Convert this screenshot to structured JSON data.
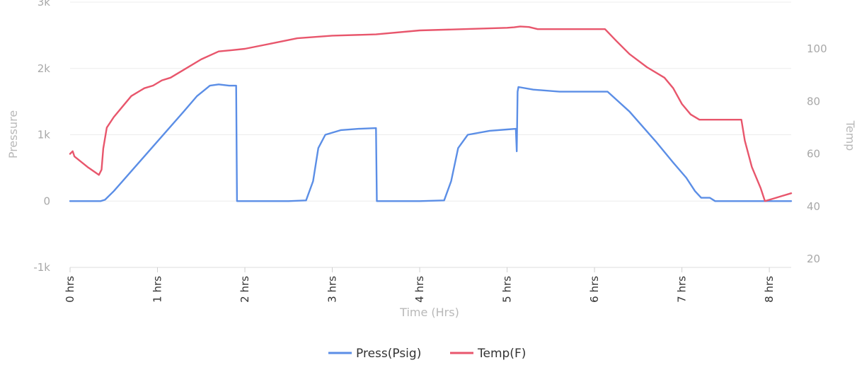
{
  "chart_data": {
    "type": "line",
    "title": "",
    "xlabel": "Time (Hrs)",
    "ylabel_left": "Pressure",
    "ylabel_right": "Temp",
    "xlim": [
      0,
      8.25
    ],
    "ylim_left": [
      -1000,
      3000
    ],
    "ylim_right": [
      20,
      100
    ],
    "x_ticks": [
      {
        "value": 0,
        "label": "0 hrs"
      },
      {
        "value": 1,
        "label": "1 hrs"
      },
      {
        "value": 2,
        "label": "2 hrs"
      },
      {
        "value": 3,
        "label": "3 hrs"
      },
      {
        "value": 4,
        "label": "4 hrs"
      },
      {
        "value": 5,
        "label": "5 hrs"
      },
      {
        "value": 6,
        "label": "6 hrs"
      },
      {
        "value": 7,
        "label": "7 hrs"
      },
      {
        "value": 8,
        "label": "8 hrs"
      }
    ],
    "y_left_ticks": [
      {
        "value": -1000,
        "label": "-1k"
      },
      {
        "value": 0,
        "label": "0"
      },
      {
        "value": 1000,
        "label": "1k"
      },
      {
        "value": 2000,
        "label": "2k"
      },
      {
        "value": 3000,
        "label": "3k"
      }
    ],
    "y_right_ticks": [
      {
        "value": 20,
        "label": "20"
      },
      {
        "value": 40,
        "label": "40"
      },
      {
        "value": 60,
        "label": "60"
      },
      {
        "value": 80,
        "label": "80"
      },
      {
        "value": 100,
        "label": "100"
      }
    ],
    "grid": true,
    "legend_position": "bottom-center",
    "series": [
      {
        "name": "Press(Psig)",
        "axis": "left",
        "color": "#5b8ee6",
        "points": [
          [
            0.0,
            0
          ],
          [
            0.35,
            0
          ],
          [
            0.4,
            20
          ],
          [
            0.5,
            150
          ],
          [
            0.7,
            450
          ],
          [
            0.9,
            750
          ],
          [
            1.1,
            1050
          ],
          [
            1.3,
            1350
          ],
          [
            1.45,
            1580
          ],
          [
            1.6,
            1740
          ],
          [
            1.7,
            1760
          ],
          [
            1.82,
            1740
          ],
          [
            1.9,
            1740
          ],
          [
            1.91,
            0
          ],
          [
            2.5,
            0
          ],
          [
            2.7,
            10
          ],
          [
            2.78,
            300
          ],
          [
            2.84,
            800
          ],
          [
            2.92,
            1000
          ],
          [
            3.1,
            1070
          ],
          [
            3.3,
            1090
          ],
          [
            3.5,
            1100
          ],
          [
            3.51,
            0
          ],
          [
            4.0,
            0
          ],
          [
            4.28,
            10
          ],
          [
            4.36,
            300
          ],
          [
            4.44,
            800
          ],
          [
            4.55,
            1000
          ],
          [
            4.8,
            1060
          ],
          [
            5.0,
            1080
          ],
          [
            5.1,
            1090
          ],
          [
            5.11,
            750
          ],
          [
            5.12,
            1650
          ],
          [
            5.13,
            1720
          ],
          [
            5.3,
            1680
          ],
          [
            5.6,
            1650
          ],
          [
            5.9,
            1650
          ],
          [
            6.15,
            1650
          ],
          [
            6.4,
            1350
          ],
          [
            6.7,
            900
          ],
          [
            6.9,
            580
          ],
          [
            7.05,
            350
          ],
          [
            7.15,
            150
          ],
          [
            7.22,
            50
          ],
          [
            7.32,
            50
          ],
          [
            7.38,
            0
          ],
          [
            8.25,
            0
          ]
        ]
      },
      {
        "name": "Temp(F)",
        "axis": "right",
        "color": "#e8566c",
        "points": [
          [
            0.0,
            60
          ],
          [
            0.03,
            61
          ],
          [
            0.05,
            59
          ],
          [
            0.2,
            55
          ],
          [
            0.33,
            52
          ],
          [
            0.36,
            54
          ],
          [
            0.38,
            62
          ],
          [
            0.42,
            70
          ],
          [
            0.5,
            74
          ],
          [
            0.6,
            78
          ],
          [
            0.7,
            82
          ],
          [
            0.8,
            84
          ],
          [
            0.85,
            85
          ],
          [
            0.95,
            86
          ],
          [
            1.05,
            88
          ],
          [
            1.15,
            89
          ],
          [
            1.3,
            92
          ],
          [
            1.5,
            96
          ],
          [
            1.7,
            99
          ],
          [
            1.85,
            99.5
          ],
          [
            2.0,
            100
          ],
          [
            2.3,
            102
          ],
          [
            2.6,
            104
          ],
          [
            3.0,
            105
          ],
          [
            3.5,
            105.5
          ],
          [
            4.0,
            107
          ],
          [
            4.5,
            107.5
          ],
          [
            5.0,
            108
          ],
          [
            5.08,
            108.2
          ],
          [
            5.15,
            108.5
          ],
          [
            5.25,
            108.3
          ],
          [
            5.35,
            107.5
          ],
          [
            5.6,
            107.5
          ],
          [
            6.0,
            107.5
          ],
          [
            6.12,
            107.5
          ],
          [
            6.25,
            103
          ],
          [
            6.4,
            98
          ],
          [
            6.6,
            93
          ],
          [
            6.8,
            89
          ],
          [
            6.9,
            85
          ],
          [
            7.0,
            79
          ],
          [
            7.1,
            75
          ],
          [
            7.2,
            73
          ],
          [
            7.5,
            73
          ],
          [
            7.68,
            73
          ],
          [
            7.72,
            65
          ],
          [
            7.8,
            55
          ],
          [
            7.9,
            47
          ],
          [
            7.95,
            42
          ],
          [
            8.05,
            43
          ],
          [
            8.15,
            44
          ],
          [
            8.25,
            45
          ]
        ]
      }
    ]
  }
}
